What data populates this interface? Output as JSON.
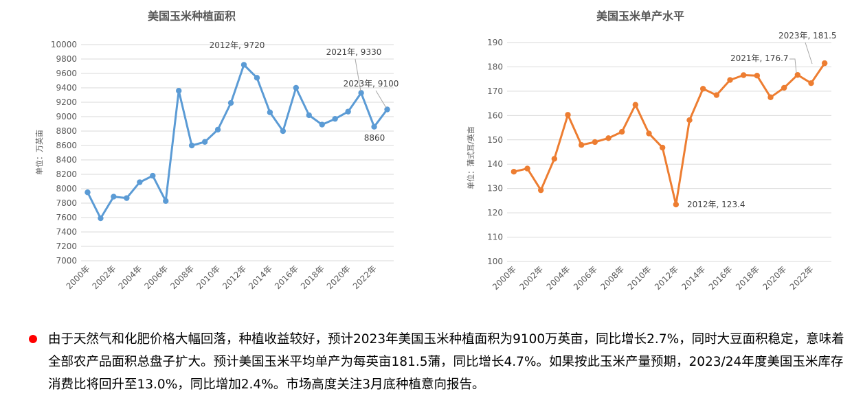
{
  "colors": {
    "left_series": "#5b9bd5",
    "right_series": "#ed7d31",
    "grid": "#d9d9d9",
    "bullet": "#ff0000"
  },
  "chart_data": [
    {
      "type": "line",
      "title": "美国玉米种植面积",
      "ylabel": "单位：万英亩",
      "ylim": [
        7000,
        10000
      ],
      "ytick_step": 200,
      "grid": true,
      "x_tick_labels": [
        "2000年",
        "2002年",
        "2004年",
        "2006年",
        "2008年",
        "2010年",
        "2012年",
        "2014年",
        "2016年",
        "2018年",
        "2020年",
        "2022年"
      ],
      "x": [
        2000,
        2001,
        2002,
        2003,
        2004,
        2005,
        2006,
        2007,
        2008,
        2009,
        2010,
        2011,
        2012,
        2013,
        2014,
        2015,
        2016,
        2017,
        2018,
        2019,
        2020,
        2021,
        2022,
        2023
      ],
      "values": [
        7950,
        7590,
        7890,
        7870,
        8090,
        8180,
        7830,
        9360,
        8600,
        8650,
        8820,
        9190,
        9720,
        9540,
        9060,
        8800,
        9400,
        9020,
        8890,
        8970,
        9070,
        9330,
        8860,
        9100
      ],
      "annotations": [
        {
          "text": "2012年, 9720",
          "x": 2012
        },
        {
          "text": "2021年, 9330",
          "x": 2021
        },
        {
          "text": "2023年, 9100",
          "x": 2023
        },
        {
          "text": "8860",
          "x": 2022
        }
      ]
    },
    {
      "type": "line",
      "title": "美国玉米单产水平",
      "ylabel": "单位：蒲式耳/英亩",
      "ylim": [
        100,
        190
      ],
      "ytick_step": 10,
      "grid": true,
      "x_tick_labels": [
        "2000年",
        "2002年",
        "2004年",
        "2006年",
        "2008年",
        "2010年",
        "2012年",
        "2014年",
        "2016年",
        "2018年",
        "2020年",
        "2022年"
      ],
      "x": [
        2000,
        2001,
        2002,
        2003,
        2004,
        2005,
        2006,
        2007,
        2008,
        2009,
        2010,
        2011,
        2012,
        2013,
        2014,
        2015,
        2016,
        2017,
        2018,
        2019,
        2020,
        2021,
        2022,
        2023
      ],
      "values": [
        136.9,
        138.2,
        129.3,
        142.2,
        160.3,
        147.9,
        149.1,
        150.7,
        153.3,
        164.4,
        152.6,
        146.8,
        123.4,
        158.1,
        171.0,
        168.4,
        174.6,
        176.6,
        176.4,
        167.5,
        171.4,
        176.7,
        173.3,
        181.5
      ],
      "annotations": [
        {
          "text": "2012年, 123.4",
          "x": 2012
        },
        {
          "text": "2021年, 176.7",
          "x": 2021
        },
        {
          "text": "2023年, 181.5",
          "x": 2023
        }
      ]
    }
  ],
  "note": {
    "text": "由于天然气和化肥价格大幅回落，种植收益较好，预计2023年美国玉米种植面积为9100万英亩，同比增长2.7%，同时大豆面积稳定，意味着全部农产品面积总盘子扩大。预计美国玉米平均单产为每英亩181.5蒲，同比增长4.7%。如果按此玉米产量预期，2023/24年度美国玉米库存消费比将回升至13.0%，同比增加2.4%。市场高度关注3月底种植意向报告。"
  }
}
